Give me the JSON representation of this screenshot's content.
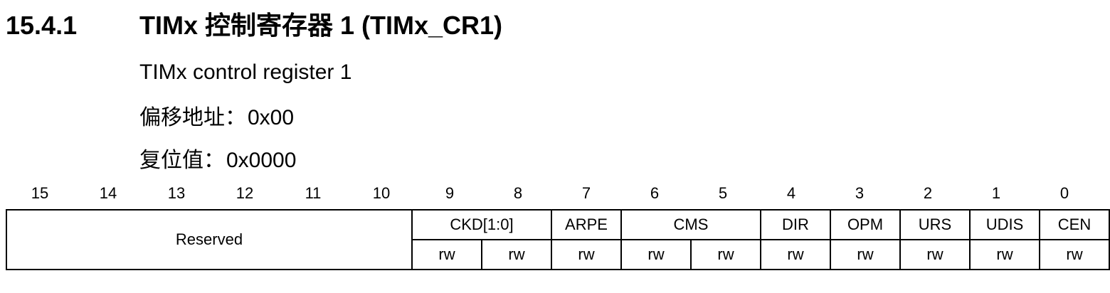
{
  "section": {
    "number": "15.4.1",
    "title": "TIMx 控制寄存器 1 (TIMx_CR1)"
  },
  "subtitle": "TIMx control register 1",
  "offset": {
    "label": "偏移地址：",
    "value": "0x00"
  },
  "reset": {
    "label": "复位值：",
    "value": "0x0000"
  },
  "bit_numbers": [
    "15",
    "14",
    "13",
    "12",
    "11",
    "10",
    "9",
    "8",
    "7",
    "6",
    "5",
    "4",
    "3",
    "2",
    "1",
    "0"
  ],
  "fields": {
    "reserved": "Reserved",
    "ckd": "CKD[1:0]",
    "arpe": "ARPE",
    "cms": "CMS",
    "dir": "DIR",
    "opm": "OPM",
    "urs": "URS",
    "udis": "UDIS",
    "cen": "CEN"
  },
  "access": [
    "rw",
    "rw",
    "rw",
    "rw",
    "rw",
    "rw",
    "rw",
    "rw",
    "rw",
    "rw"
  ]
}
